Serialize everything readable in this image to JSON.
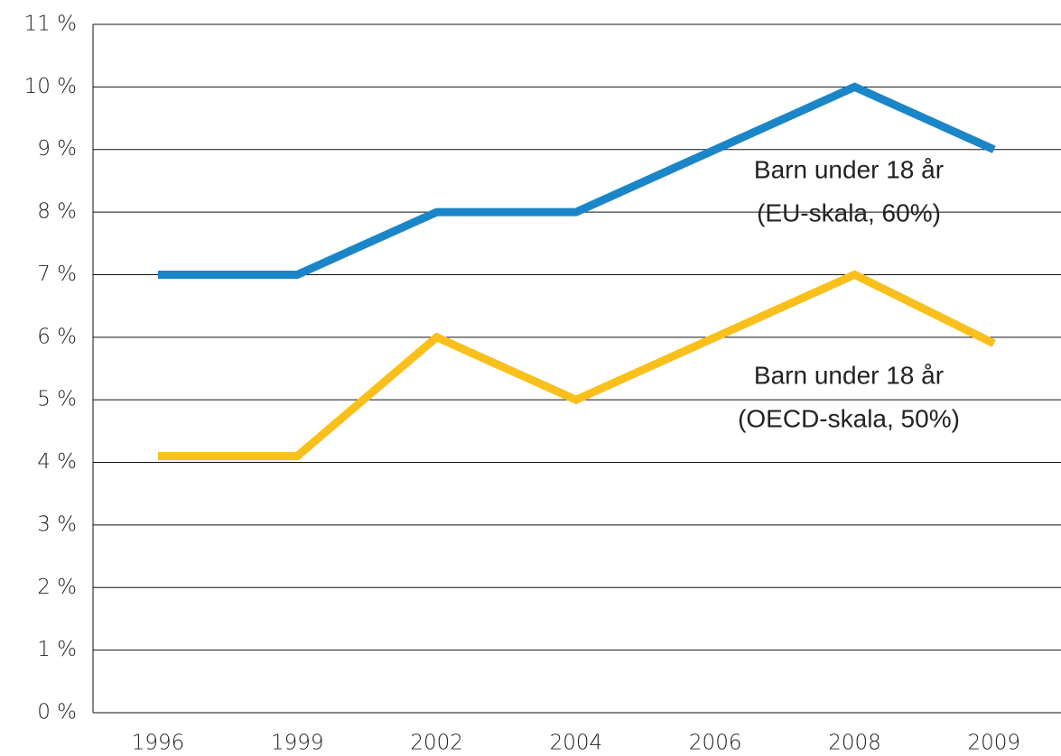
{
  "chart_data": {
    "type": "line",
    "categories": [
      "1996",
      "1999",
      "2002",
      "2004",
      "2006",
      "2008",
      "2009"
    ],
    "series": [
      {
        "color": "#1a86c8",
        "values": [
          7,
          7,
          8,
          8,
          9,
          10,
          9
        ]
      },
      {
        "color": "#f9c01c",
        "values": [
          4.1,
          4.1,
          6,
          5,
          6,
          7,
          5.9
        ]
      }
    ],
    "annotations": [
      {
        "lines": [
          "Barn under 18 år",
          "(EU-skala, 60%)"
        ]
      },
      {
        "lines": [
          "Barn under 18 år",
          "(OECD-skala, 50%)"
        ]
      }
    ],
    "ylim": [
      0,
      11
    ],
    "yticks": [
      {
        "value": 0,
        "label": "0 %"
      },
      {
        "value": 1,
        "label": "1 %"
      },
      {
        "value": 2,
        "label": "2 %"
      },
      {
        "value": 3,
        "label": "3 %"
      },
      {
        "value": 4,
        "label": "4 %"
      },
      {
        "value": 5,
        "label": "5 %"
      },
      {
        "value": 6,
        "label": "6 %"
      },
      {
        "value": 7,
        "label": "7 %"
      },
      {
        "value": 8,
        "label": "8 %"
      },
      {
        "value": 9,
        "label": "9 %"
      },
      {
        "value": 10,
        "label": "10 %"
      },
      {
        "value": 11,
        "label": "11 %"
      }
    ],
    "grid": true
  }
}
